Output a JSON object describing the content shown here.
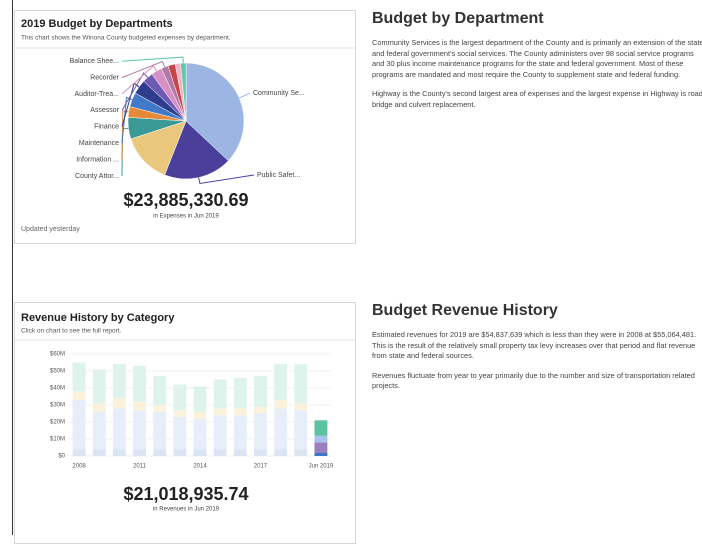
{
  "chart_data": [
    {
      "type": "pie",
      "title": "2019 Budget by Departments",
      "subtitle": "This chart shows the Winona County budgeted expenses by department.",
      "categories": [
        "Community Se...",
        "Public Safet...",
        null,
        "County Attor...",
        "Information ...",
        "Maintenance",
        "Finance",
        "Assessor",
        "Auditor-Trea...",
        "Recorder",
        null,
        null,
        "Balance Shee..."
      ],
      "values": [
        37,
        19,
        14,
        6,
        3,
        4,
        4,
        3,
        3,
        2,
        2,
        1.5,
        1.5
      ],
      "colors": [
        "#9db5e3",
        "#4b3f9c",
        "#e9c77c",
        "#3a9a96",
        "#e8893a",
        "#4178c8",
        "#2e3d8e",
        "#6f5bb5",
        "#d88fc4",
        "#b07aa8",
        "#c9454a",
        "#f0b3c8",
        "#5fc7a4"
      ],
      "kpi": "$23,885,330.69",
      "kpi_caption": "in Expenses in Jun 2019",
      "footer": "Updated yesterday"
    },
    {
      "type": "stacked_bar",
      "title": "Revenue History by Category",
      "subtitle": "Click on chart to see the full report.",
      "categories": [
        "2008",
        null,
        null,
        "2011",
        null,
        null,
        "2014",
        null,
        null,
        "2017",
        null,
        null,
        "Jun 2019"
      ],
      "series": [
        {
          "color": "#dbe4f3",
          "current_color": "#3f74c4",
          "values": [
            4000000,
            4000000,
            4000000,
            4000000,
            4000000,
            4000000,
            4000000,
            4000000,
            4000000,
            4000000,
            4000000,
            4000000,
            2000000
          ]
        },
        {
          "color": "#e8eef9",
          "current_color": "#9c7fc0",
          "values": [
            29000000,
            22000000,
            24000000,
            23000000,
            22000000,
            19000000,
            18000000,
            20000000,
            20000000,
            21000000,
            24000000,
            23000000,
            6000000
          ]
        },
        {
          "color": "#fbf2dc",
          "current_color": "#a9c3ea",
          "values": [
            5000000,
            5000000,
            6000000,
            5000000,
            4000000,
            4000000,
            4000000,
            4000000,
            4000000,
            4000000,
            5000000,
            4000000,
            4000000
          ]
        },
        {
          "color": "#def3ec",
          "current_color": "#5cc3a0",
          "values": [
            17000000,
            20000000,
            20000000,
            21000000,
            17000000,
            15000000,
            15000000,
            17000000,
            18000000,
            18000000,
            21000000,
            23000000,
            9000000
          ]
        }
      ],
      "ylim": [
        0,
        60000000
      ],
      "yticks": [
        {
          "value": 0,
          "label": "$0"
        },
        {
          "value": 10000000,
          "label": "$10M"
        },
        {
          "value": 20000000,
          "label": "$20M"
        },
        {
          "value": 30000000,
          "label": "$30M"
        },
        {
          "value": 40000000,
          "label": "$40M"
        },
        {
          "value": 50000000,
          "label": "$50M"
        },
        {
          "value": 60000000,
          "label": "$60M"
        }
      ],
      "grid": true,
      "kpi": "$21,018,935.74",
      "kpi_caption": "in Revenues in Jun 2019"
    }
  ],
  "sections": [
    {
      "heading": "Budget by Department",
      "paragraphs": [
        "Community Services is the largest department of the County and is primarily an extension of the state and federal government's social services.  The County administers over 98 social service programs and 30 plus income maintenance programs for the state and federal government.  Most of these programs are mandated and most require the County to supplement state and federal funding.",
        "Highway is the County's second largest area of expenses and the largest expense in Highway is road, bridge and culvert replacement."
      ]
    },
    {
      "heading": "Budget Revenue History",
      "paragraphs": [
        "Estimated revenues for 2019 are $54,837,639 which is less than they were in 2008 at $55,064,481.  This is the result of the relatively small property tax levy increases over that period and flat revenue from state and federal sources.",
        "Revenues fluctuate from year to year primarily due to the number and size of transportation related projects."
      ]
    }
  ]
}
